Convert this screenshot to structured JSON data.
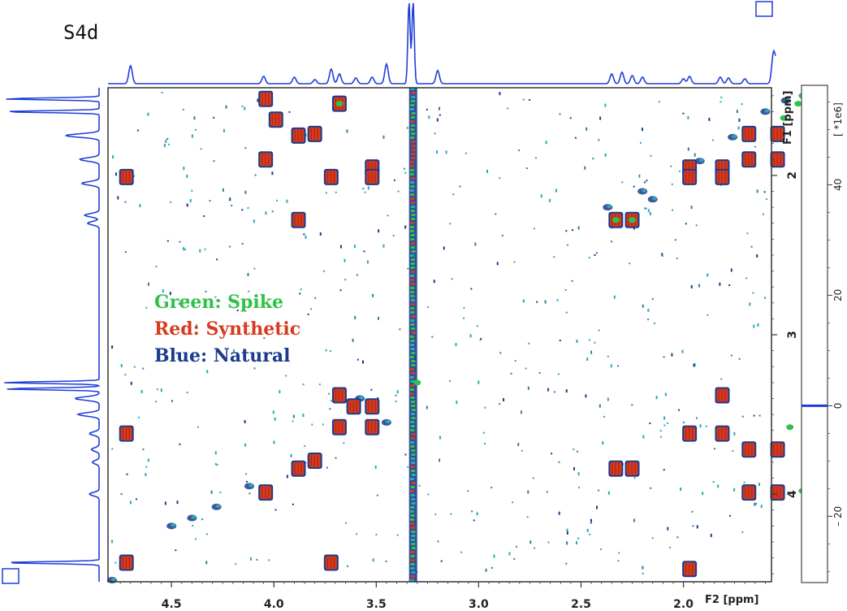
{
  "panel_label": "S4d",
  "colors": {
    "synthetic": "#d83a1f",
    "spike": "#2fc24a",
    "natural": "#1b3b8c",
    "noise": "#2aa8b8",
    "projection": "#1f3ed8"
  },
  "chart_data": {
    "type": "heatmap",
    "subtype": "2D NMR (TOCSY/COSY) overlay",
    "x_axis": {
      "label": "F2 [ppm]",
      "reversed": true,
      "range": [
        4.81,
        2.53
      ],
      "range_note": "continues to about 1.57 ppm on the right",
      "ticks": [
        "4.5",
        "4.0",
        "3.5",
        "3.0",
        "2.5",
        "2.0"
      ]
    },
    "x_range": [
      4.81,
      1.57
    ],
    "y_axis": {
      "label": "F1 [ppm]",
      "reversed": true,
      "range": [
        1.45,
        4.55
      ],
      "ticks": [
        "2",
        "3",
        "4"
      ]
    },
    "colorbar": {
      "unit_label": "[ *1e6]",
      "ticks": [
        "40",
        "20",
        "0",
        "– 20"
      ],
      "tick_values": [
        40,
        20,
        0,
        -20
      ],
      "range": [
        -32,
        58
      ]
    },
    "legend": [
      {
        "label": "Green: Spike",
        "color": "#2fc24a"
      },
      {
        "label": "Red: Synthetic",
        "color": "#d83a1f"
      },
      {
        "label": "Blue: Natural",
        "color": "#1b3b8c"
      }
    ],
    "solvent_line_ppm": 3.32,
    "cross_peaks": [
      [
        4.04,
        1.52
      ],
      [
        3.68,
        1.55
      ],
      [
        3.99,
        1.65
      ],
      [
        3.88,
        1.75
      ],
      [
        3.8,
        1.74
      ],
      [
        4.04,
        1.9
      ],
      [
        3.52,
        1.95
      ],
      [
        3.72,
        2.01
      ],
      [
        3.52,
        2.01
      ],
      [
        4.72,
        2.01
      ],
      [
        3.88,
        2.28
      ],
      [
        2.33,
        2.28
      ],
      [
        2.25,
        2.28
      ],
      [
        1.97,
        1.95
      ],
      [
        1.81,
        1.95
      ],
      [
        1.97,
        2.01
      ],
      [
        1.81,
        2.01
      ],
      [
        1.68,
        1.74
      ],
      [
        1.68,
        1.9
      ],
      [
        1.54,
        1.74
      ],
      [
        1.54,
        1.9
      ],
      [
        3.68,
        3.38
      ],
      [
        3.61,
        3.45
      ],
      [
        3.68,
        3.58
      ],
      [
        3.52,
        3.45
      ],
      [
        3.52,
        3.58
      ],
      [
        3.88,
        3.84
      ],
      [
        3.8,
        3.79
      ],
      [
        4.04,
        3.99
      ],
      [
        4.72,
        3.62
      ],
      [
        2.33,
        3.84
      ],
      [
        2.25,
        3.84
      ],
      [
        1.97,
        3.62
      ],
      [
        1.81,
        3.62
      ],
      [
        1.81,
        3.38
      ],
      [
        1.68,
        3.72
      ],
      [
        1.68,
        3.99
      ],
      [
        1.54,
        3.72
      ],
      [
        1.54,
        3.99
      ],
      [
        1.97,
        4.47
      ],
      [
        4.72,
        4.43
      ],
      [
        3.72,
        4.43
      ]
    ],
    "spike_peaks": [
      [
        3.68,
        1.55
      ],
      [
        2.33,
        2.28
      ],
      [
        2.25,
        2.28
      ],
      [
        1.51,
        1.64
      ],
      [
        1.44,
        1.55
      ],
      [
        1.42,
        1.5
      ],
      [
        1.48,
        3.58
      ],
      [
        1.42,
        3.98
      ],
      [
        3.3,
        3.3
      ]
    ],
    "diagonal_natural": [
      [
        4.79,
        4.54
      ],
      [
        4.4,
        4.15
      ],
      [
        4.12,
        3.95
      ],
      [
        3.62,
        3.48
      ],
      [
        3.58,
        3.4
      ],
      [
        2.2,
        2.1
      ],
      [
        2.15,
        2.15
      ],
      [
        1.92,
        1.91
      ],
      [
        1.76,
        1.76
      ],
      [
        1.6,
        1.6
      ],
      [
        1.5,
        1.53
      ],
      [
        4.5,
        4.2
      ],
      [
        4.28,
        4.08
      ],
      [
        3.45,
        3.55
      ],
      [
        2.37,
        2.2
      ]
    ]
  }
}
